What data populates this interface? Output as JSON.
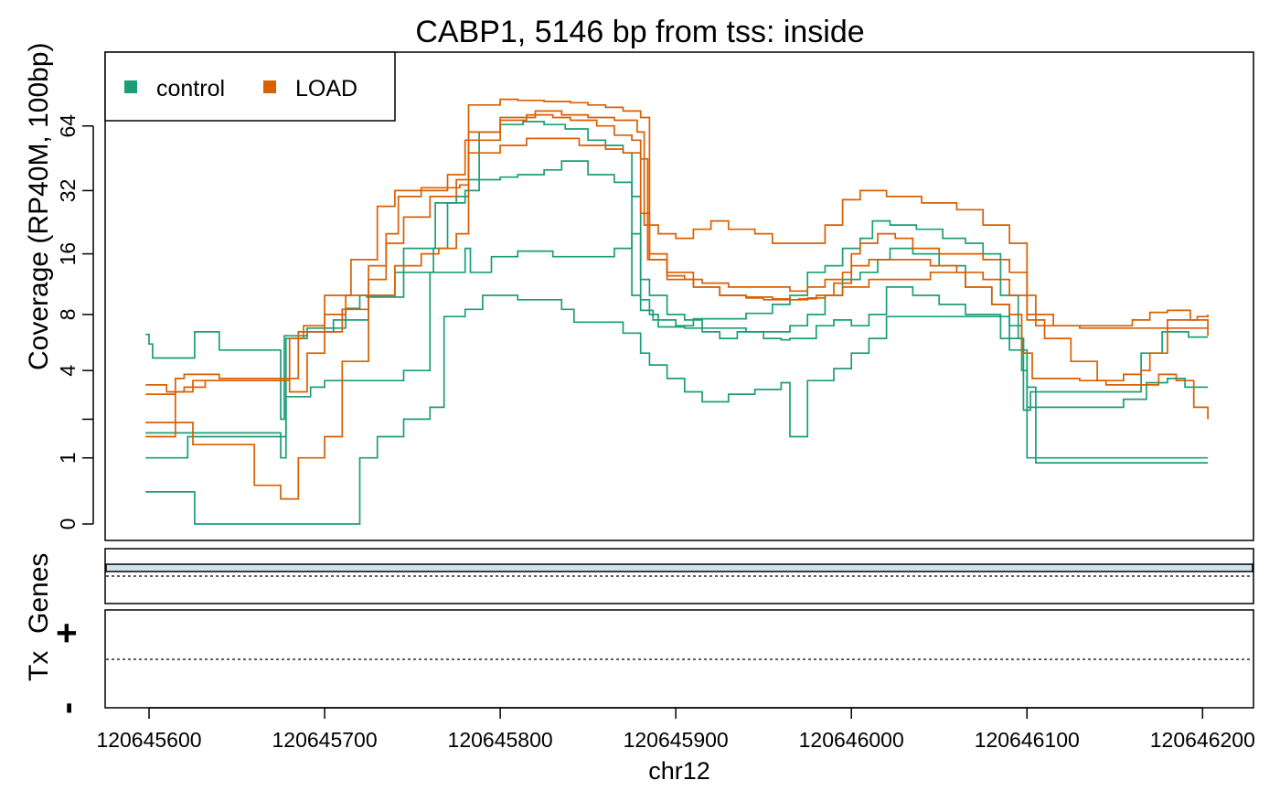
{
  "chart_data": {
    "type": "line",
    "title": "CABP1, 5146 bp from tss: inside",
    "xlabel": "chr12",
    "ylabel": "Coverage (RP40M, 100bp)",
    "x_tick_labels": [
      "120645600",
      "120645700",
      "120645800",
      "120645900",
      "120646000",
      "120646100",
      "120646200"
    ],
    "x_ticks": [
      120645600,
      120645700,
      120645800,
      120645900,
      120646000,
      120646100,
      120646200
    ],
    "xlim": [
      120645575,
      120646229
    ],
    "y_scale": "log2(x+1)",
    "y_ticks": [
      0,
      1,
      4,
      8,
      16,
      32,
      64
    ],
    "y_tick_labels": [
      "0",
      "1",
      "4",
      "8",
      "16",
      "32",
      "64"
    ],
    "ylim": [
      0,
      140
    ],
    "grid": false,
    "legend": {
      "position": "top-left",
      "entries": [
        {
          "label": "control",
          "color": "#1B9E77"
        },
        {
          "label": "LOAD",
          "color": "#D95F02"
        }
      ]
    },
    "series": [
      {
        "group": "control",
        "color": "#1B9E77",
        "x": [
          120645598,
          120645600,
          120645602,
          120645625,
          120645626,
          120645640,
          120645668,
          120645675,
          120645677,
          120645690,
          120645712,
          120645720,
          120645724,
          120645745,
          120645763,
          120645780,
          120645788,
          120645800,
          120645813,
          120645825,
          120645837,
          120645850,
          120645860,
          120645870,
          120645875,
          120645880,
          120645887,
          120645900,
          120645910,
          120645925,
          120645940,
          120645955,
          120645965,
          120645975,
          120645985,
          120645995,
          120646005,
          120646012,
          120646022,
          120646037,
          120646052,
          120646065,
          120646075,
          120646085,
          120646095,
          120646098,
          120646102,
          120646112,
          120646123,
          120646135,
          120646150,
          120646165,
          120646177,
          120646185,
          120646192,
          120646200,
          120646203
        ],
        "y": [
          6.3,
          5.6,
          4.7,
          4.7,
          6.5,
          5.2,
          5.2,
          2.0,
          6.2,
          6.8,
          8.6,
          10.0,
          9.8,
          17.0,
          28.0,
          32.0,
          60.0,
          65.0,
          67.0,
          65.0,
          62.0,
          55.0,
          52.0,
          48.0,
          10.0,
          8.4,
          7.5,
          7.0,
          7.6,
          7.6,
          8.1,
          9.0,
          10.0,
          13.0,
          14.0,
          17.0,
          19.0,
          23.0,
          22.0,
          21.0,
          19.0,
          18.0,
          16.0,
          10.0,
          6.0,
          2.3,
          3.0,
          3.0,
          3.0,
          3.0,
          3.0,
          5.0,
          6.5,
          6.5,
          6.1,
          6.1,
          6.1
        ]
      },
      {
        "group": "control",
        "color": "#1B9E77",
        "x": [
          120645598,
          120645612,
          120645625,
          120645638,
          120645662,
          120645675,
          120645678,
          120645690,
          120645705,
          120645725,
          120645740,
          120645762,
          120645770,
          120645775,
          120645782,
          120645800,
          120645810,
          120645825,
          120645835,
          120645850,
          120645865,
          120645875,
          120645880,
          120645885,
          120645890,
          120645897,
          120645905,
          120645920,
          120645940,
          120645955,
          120645965,
          120645975,
          120645985,
          120645995,
          120646005,
          120646015,
          120646022,
          120646035,
          120646050,
          120646065,
          120646080,
          120646090,
          120646097,
          120646100,
          120646112,
          120646125,
          120646140,
          120646155,
          120646168,
          120646180,
          120646190,
          120646195,
          120646203
        ],
        "y": [
          1.6,
          1.6,
          1.6,
          1.6,
          1.6,
          1.0,
          6.0,
          6.5,
          7.5,
          10.0,
          13.0,
          17.0,
          28.0,
          30.0,
          36.0,
          37.0,
          38.0,
          40.0,
          44.0,
          38.0,
          35.0,
          30.0,
          9.5,
          8.0,
          6.9,
          6.9,
          6.8,
          6.8,
          6.5,
          6.5,
          7.0,
          8.0,
          10.0,
          12.0,
          13.0,
          15.0,
          17.0,
          16.0,
          14.0,
          11.0,
          9.0,
          7.0,
          4.0,
          2.4,
          2.4,
          2.4,
          2.4,
          2.7,
          3.4,
          3.6,
          3.2,
          3.2,
          3.2
        ]
      },
      {
        "group": "control",
        "color": "#1B9E77",
        "x": [
          120645598,
          120645610,
          120645620,
          120645622,
          120645650,
          120645674,
          120645678,
          120645692,
          120645700,
          120645720,
          120645735,
          120645745,
          120645760,
          120645780,
          120645783,
          120645795,
          120645810,
          120645830,
          120645850,
          120645865,
          120645875,
          120645880,
          120645885,
          120645895,
          120645905,
          120645915,
          120645925,
          120645935,
          120645950,
          120645960,
          120645965,
          120645975,
          120645980,
          120645990,
          120646000,
          120646010,
          120646020,
          120646035,
          120646050,
          120646065,
          120646085,
          120646098,
          120646100,
          120646120,
          120646140,
          120646160,
          120646175,
          120646180,
          120646203
        ],
        "y": [
          1.0,
          1.0,
          1.0,
          1.5,
          1.5,
          1.5,
          2.8,
          3.2,
          3.5,
          3.5,
          3.5,
          4.0,
          13.0,
          17.0,
          13.0,
          15.5,
          16.5,
          15.5,
          15.5,
          17.0,
          20.0,
          12.0,
          10.0,
          8.0,
          7.5,
          6.5,
          6.0,
          6.5,
          6.0,
          5.9,
          6.0,
          6.0,
          7.0,
          7.5,
          7.0,
          8.0,
          11.0,
          10.0,
          9.0,
          8.0,
          6.0,
          5.0,
          1.0,
          1.0,
          1.0,
          1.0,
          1.0,
          1.0,
          1.0
        ]
      },
      {
        "group": "control",
        "color": "#1B9E77",
        "x": [
          120645598,
          120645625,
          120645626,
          120645674,
          120645680,
          120645700,
          120645710,
          120645720,
          120645730,
          120645745,
          120645760,
          120645768,
          120645780,
          120645790,
          120645810,
          120645820,
          120645835,
          120645842,
          120645850,
          120645860,
          120645870,
          120645880,
          120645885,
          120645895,
          120645905,
          120645915,
          120645930,
          120645945,
          120645960,
          120645965,
          120645975,
          120645990,
          120646000,
          120646010,
          120646020,
          120646035,
          120646050,
          120646065,
          120646080,
          120646090,
          120646100,
          120646105,
          120646125,
          120646150,
          120646165,
          120646185,
          120646192,
          120646203
        ],
        "y": [
          0.4,
          0.4,
          0.0,
          0.0,
          0.0,
          0.0,
          0.0,
          1.0,
          1.5,
          2.0,
          2.4,
          7.8,
          8.5,
          10.0,
          9.5,
          9.5,
          8.5,
          7.3,
          7.3,
          7.3,
          6.4,
          5.0,
          4.3,
          3.6,
          3.0,
          2.6,
          2.9,
          3.1,
          3.4,
          1.5,
          3.5,
          4.1,
          5.0,
          6.0,
          7.8,
          7.8,
          7.8,
          7.8,
          7.8,
          5.2,
          3.2,
          0.9,
          0.9,
          0.9,
          0.9,
          0.9,
          0.9,
          0.9
        ]
      },
      {
        "group": "LOAD",
        "color": "#D95F02",
        "x": [
          120645598,
          120645610,
          120645625,
          120645640,
          120645655,
          120645665,
          120645675,
          120645680,
          120645688,
          120645700,
          120645712,
          120645725,
          120645735,
          120645742,
          120645755,
          120645770,
          120645777,
          120645782,
          120645800,
          120645815,
          120645830,
          120645840,
          120645855,
          120645865,
          120645875,
          120645880,
          120645885,
          120645895,
          120645910,
          120645925,
          120645940,
          120645955,
          120645965,
          120645975,
          120645985,
          120645995,
          120646010,
          120646025,
          120646045,
          120646065,
          120646080,
          120646090,
          120646097,
          120646103,
          120646115,
          120646130,
          120646145,
          120646160,
          120646175,
          120646185,
          120646195,
          120646203
        ],
        "y": [
          3.3,
          3.0,
          3.5,
          3.5,
          3.5,
          3.5,
          3.5,
          6.0,
          7.0,
          8.0,
          10.0,
          14.0,
          20.0,
          30.0,
          32.0,
          33.0,
          34.0,
          60.0,
          68.0,
          72.0,
          70.0,
          68.0,
          64.0,
          58.0,
          55.0,
          25.0,
          16.0,
          13.0,
          11.0,
          10.0,
          9.8,
          9.6,
          9.5,
          9.7,
          10.0,
          11.0,
          12.0,
          12.0,
          13.0,
          11.0,
          9.0,
          8.0,
          5.0,
          3.6,
          3.6,
          3.5,
          3.3,
          3.3,
          3.8,
          3.5,
          2.4,
          2.0
        ]
      },
      {
        "group": "LOAD",
        "color": "#D95F02",
        "x": [
          120645598,
          120645610,
          120645615,
          120645620,
          120645632,
          120645640,
          120645650,
          120645665,
          120645675,
          120645680,
          120645690,
          120645700,
          120645710,
          120645725,
          120645735,
          120645745,
          120645760,
          120645775,
          120645782,
          120645800,
          120645810,
          120645825,
          120645840,
          120645850,
          120645860,
          120645870,
          120645880,
          120645885,
          120645895,
          120645905,
          120645915,
          120645930,
          120645945,
          120645955,
          120645965,
          120645975,
          120645985,
          120645995,
          120646000,
          120646005,
          120646015,
          120646025,
          120646035,
          120646050,
          120646065,
          120646075,
          120646090,
          120646100,
          120646115,
          120646130,
          120646145,
          120646160,
          120646175,
          120646190,
          120646200,
          120646203
        ],
        "y": [
          1.5,
          1.5,
          3.0,
          3.2,
          3.5,
          3.5,
          3.5,
          3.5,
          3.5,
          3.0,
          5.0,
          6.5,
          8.5,
          12.0,
          18.0,
          24.0,
          30.0,
          36.0,
          80.0,
          85.0,
          84.0,
          83.0,
          82.0,
          80.0,
          78.0,
          75.0,
          70.0,
          15.0,
          12.5,
          12.0,
          11.5,
          11.0,
          11.0,
          11.0,
          10.5,
          11.0,
          12.0,
          13.0,
          16.0,
          18.0,
          20.0,
          19.0,
          17.0,
          16.0,
          16.0,
          15.0,
          13.0,
          8.0,
          7.0,
          6.8,
          6.8,
          6.8,
          6.8,
          6.8,
          6.8,
          6.8
        ]
      },
      {
        "group": "LOAD",
        "color": "#D95F02",
        "x": [
          120645598,
          120645610,
          120645620,
          120645625,
          120645640,
          120645660,
          120645670,
          120645675,
          120645685,
          120645700,
          120645710,
          120645725,
          120645740,
          120645755,
          120645765,
          120645775,
          120645782,
          120645800,
          120645815,
          120645830,
          120645845,
          120645860,
          120645870,
          120645880,
          120645884,
          120645895,
          120645910,
          120645925,
          120645940,
          120645950,
          120645960,
          120645970,
          120645980,
          120645990,
          120646000,
          120646010,
          120646025,
          120646045,
          120646060,
          120646075,
          120646090,
          120646100,
          120646110,
          120646125,
          120646140,
          120646155,
          120646165,
          120646170,
          120646180,
          120646195,
          120646203
        ],
        "y": [
          1.9,
          1.9,
          1.9,
          1.3,
          1.3,
          0.5,
          0.5,
          0.3,
          1.0,
          1.5,
          4.5,
          10.0,
          14.0,
          16.0,
          17.0,
          20.0,
          48.0,
          52.0,
          56.0,
          56.0,
          52.0,
          50.0,
          48.0,
          45.0,
          15.0,
          12.0,
          11.0,
          10.0,
          9.7,
          9.5,
          9.5,
          9.6,
          10.0,
          11.5,
          14.0,
          15.0,
          15.0,
          14.0,
          13.0,
          12.0,
          10.0,
          7.5,
          6.0,
          4.5,
          3.5,
          3.8,
          4.0,
          5.0,
          7.5,
          7.5,
          6.2
        ]
      },
      {
        "group": "LOAD",
        "color": "#D95F02",
        "x": [
          120645598,
          120645608,
          120645615,
          120645620,
          120645640,
          120645660,
          120645671,
          120645675,
          120645685,
          120645700,
          120645715,
          120645730,
          120645740,
          120645755,
          120645770,
          120645780,
          120645800,
          120645820,
          120645835,
          120645850,
          120645865,
          120645878,
          120645882,
          120645890,
          120645900,
          120645910,
          120645920,
          120645930,
          120645945,
          120645955,
          120645965,
          120645975,
          120645985,
          120645995,
          120646005,
          120646020,
          120646040,
          120646060,
          120646075,
          120646090,
          120646100,
          120646105,
          120646110,
          120646125,
          120646140,
          120646150,
          120646160,
          120646170,
          120646180,
          120646193,
          120646197,
          120646203
        ],
        "y": [
          2.9,
          2.9,
          3.6,
          3.8,
          3.6,
          3.6,
          3.6,
          3.6,
          6.5,
          10.0,
          15.0,
          27.0,
          32.0,
          33.0,
          38.0,
          55.0,
          70.0,
          75.0,
          72.0,
          70.0,
          68.0,
          60.0,
          22.0,
          20.0,
          19.0,
          21.0,
          23.0,
          21.0,
          20.0,
          18.0,
          18.0,
          18.0,
          22.0,
          29.0,
          32.0,
          30.0,
          28.0,
          26.0,
          22.0,
          18.0,
          10.0,
          7.0,
          7.0,
          7.0,
          7.0,
          7.0,
          7.5,
          8.2,
          8.4,
          7.5,
          7.8,
          8.0
        ]
      }
    ],
    "bottom_panels": [
      {
        "label": "Genes"
      },
      {
        "label": "Tx",
        "strand_labels": [
          "+",
          "-"
        ]
      }
    ]
  }
}
